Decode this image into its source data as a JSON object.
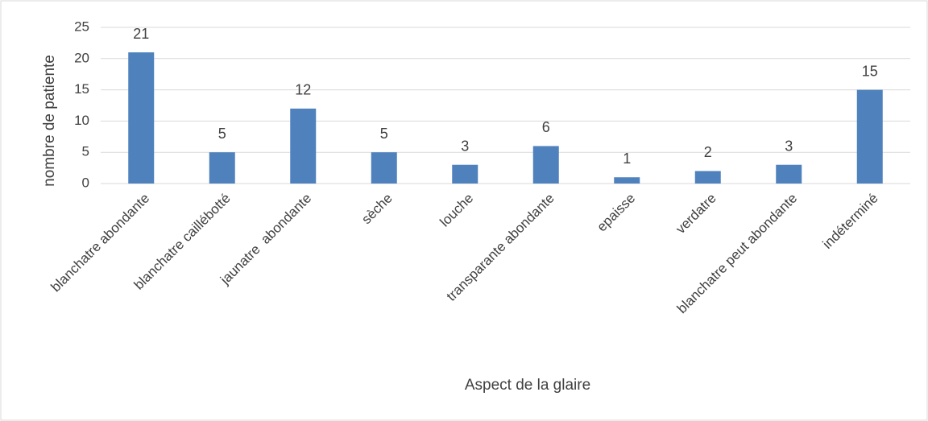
{
  "chart_data": {
    "type": "bar",
    "categories": [
      "blanchatre abondante",
      "blanchatre caillébotté",
      "jaunatre  abondante",
      "sèche",
      "louche",
      "transparante abondante",
      "epaisse",
      "verdatre",
      "blanchatre peut abondante",
      "indéterminé"
    ],
    "values": [
      21,
      5,
      12,
      5,
      3,
      6,
      1,
      2,
      3,
      15
    ],
    "color": "#4f81bd",
    "xlabel": "Aspect de la glaire",
    "ylabel": "nombre de patiente",
    "ylim": [
      0,
      25
    ],
    "yticks": [
      0,
      5,
      10,
      15,
      20,
      25
    ],
    "grid": true
  }
}
